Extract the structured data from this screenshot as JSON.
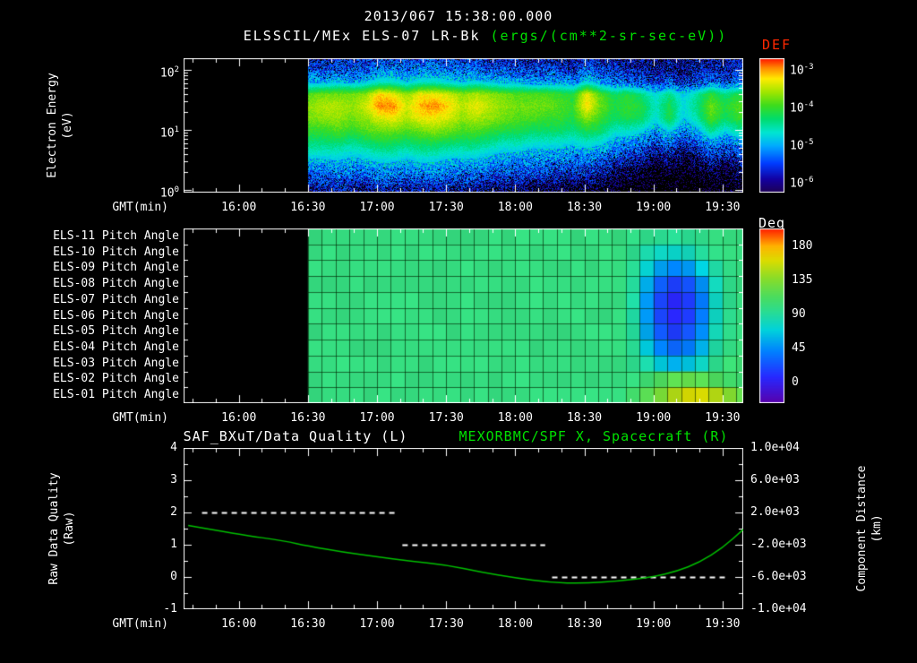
{
  "header": {
    "timestamp": "2013/067 15:38:00.000",
    "instrument_title": "ELSSCIL/MEx ELS-07 LR-Bk",
    "units_label": "(ergs/(cm**2-sr-sec-eV))"
  },
  "colors": {
    "background": "#000000",
    "white": "#ffffff",
    "green": "#00e000",
    "def_red": "#ff2800",
    "curve_green": "#00c000"
  },
  "axes": {
    "gmt_label": "GMT(min)",
    "xtick_labels": [
      "16:00",
      "16:30",
      "17:00",
      "17:30",
      "18:00",
      "18:30",
      "19:00",
      "19:30"
    ]
  },
  "spectrogram": {
    "colorbar_title": "DEF",
    "ylabel_line1": "Electron Energy",
    "ylabel_line2": "(eV)",
    "ytick_exponents": [
      2,
      1,
      0
    ],
    "colorbar_tick_exponents": [
      -3,
      -4,
      -5,
      -6
    ]
  },
  "pitch": {
    "colorbar_title": "Deg",
    "colorbar_ticks": [
      "180",
      "135",
      "90",
      "45",
      "0"
    ]
  },
  "bottom": {
    "title_left": "SAF_BXuT/Data Quality (L)",
    "title_right": "MEXORBMC/SPF X, Spacecraft (R)",
    "left_label_line1": "Raw Data Quality",
    "left_label_line2": "(Raw)",
    "right_label_line1": "Component Distance",
    "right_label_line2": "(km)",
    "left_ticks": [
      "4",
      "3",
      "2",
      "1",
      "0",
      "-1"
    ],
    "right_ticks": [
      "1.0e+04",
      "6.0e+03",
      "2.0e+03",
      "-2.0e+03",
      "-6.0e+03",
      "-1.0e+04"
    ]
  },
  "colormaps": {
    "def": [
      [
        0,
        "#1e0050"
      ],
      [
        0.1,
        "#1400a0"
      ],
      [
        0.22,
        "#003cff"
      ],
      [
        0.35,
        "#00aaff"
      ],
      [
        0.45,
        "#00e6d2"
      ],
      [
        0.55,
        "#00dc6e"
      ],
      [
        0.65,
        "#3cdc1e"
      ],
      [
        0.75,
        "#a0e600"
      ],
      [
        0.85,
        "#ffeb00"
      ],
      [
        0.93,
        "#ff8c00"
      ],
      [
        1,
        "#ff1400"
      ]
    ],
    "deg": [
      [
        0,
        "#5a00aa"
      ],
      [
        0.15,
        "#2828ff"
      ],
      [
        0.3,
        "#0082ff"
      ],
      [
        0.42,
        "#00d2dc"
      ],
      [
        0.52,
        "#28dc96"
      ],
      [
        0.6,
        "#46dc64"
      ],
      [
        0.72,
        "#8cdc28"
      ],
      [
        0.82,
        "#dcdc00"
      ],
      [
        0.9,
        "#ffb400"
      ],
      [
        1,
        "#ff1e00"
      ]
    ]
  },
  "chart_data": [
    {
      "type": "heatmap",
      "name": "electron_energy_spectrogram",
      "title": "ELSSCIL/MEx ELS-07 LR-Bk",
      "units": "ergs/(cm**2-sr-sec-eV)",
      "xlabel": "GMT(min)",
      "x_range": [
        "15:36",
        "19:39"
      ],
      "xtick_labels": [
        "16:00",
        "16:30",
        "17:00",
        "17:30",
        "18:00",
        "18:30",
        "19:00",
        "19:30"
      ],
      "ylabel": "Electron Energy (eV)",
      "yscale": "log",
      "ytick_ev": [
        100,
        10,
        1
      ],
      "value_log10_range": [
        -6,
        -3
      ],
      "data_start": "16:30",
      "energy_rows_log10": [
        2.2,
        2.0,
        1.8,
        1.6,
        1.4,
        1.2,
        1.0,
        0.7,
        0.35,
        0
      ],
      "columns_t": [
        "16:31",
        "16:37",
        "16:43",
        "16:49",
        "16:55",
        "17:01",
        "17:07",
        "17:13",
        "17:19",
        "17:25",
        "17:31",
        "17:37",
        "17:43",
        "17:49",
        "17:55",
        "18:01",
        "18:07",
        "18:13",
        "18:19",
        "18:25",
        "18:31",
        "18:37",
        "18:43",
        "18:49",
        "18:55",
        "19:01",
        "19:07",
        "19:13",
        "19:19",
        "19:25",
        "19:31",
        "19:37"
      ],
      "values": [
        [
          -5.6,
          -5.3,
          -4.9,
          -4.0,
          -3.8,
          -3.9,
          -4.1,
          -4.5,
          -5.1,
          -5.7
        ],
        [
          -5.6,
          -5.4,
          -4.9,
          -3.9,
          -3.7,
          -3.8,
          -4.1,
          -4.5,
          -5.1,
          -5.7
        ],
        [
          -5.5,
          -5.3,
          -4.8,
          -3.9,
          -3.7,
          -3.8,
          -4.0,
          -4.5,
          -5.0,
          -5.6
        ],
        [
          -5.6,
          -5.3,
          -4.9,
          -3.9,
          -3.8,
          -3.9,
          -4.1,
          -4.6,
          -5.1,
          -5.7
        ],
        [
          -5.5,
          -5.3,
          -4.8,
          -3.8,
          -3.6,
          -3.8,
          -4.0,
          -4.5,
          -5.1,
          -5.7
        ],
        [
          -5.4,
          -5.1,
          -4.6,
          -3.4,
          -3.2,
          -3.6,
          -3.9,
          -4.4,
          -5.0,
          -5.6
        ],
        [
          -5.4,
          -5.1,
          -4.6,
          -3.5,
          -3.2,
          -3.5,
          -3.9,
          -4.4,
          -5.0,
          -5.6
        ],
        [
          -5.5,
          -5.2,
          -4.8,
          -3.8,
          -3.6,
          -3.7,
          -4.0,
          -4.5,
          -5.1,
          -5.7
        ],
        [
          -5.4,
          -5.1,
          -4.6,
          -3.5,
          -3.3,
          -3.5,
          -3.9,
          -4.4,
          -5.0,
          -5.6
        ],
        [
          -5.4,
          -5.1,
          -4.6,
          -3.5,
          -3.2,
          -3.5,
          -3.8,
          -4.4,
          -5.0,
          -5.6
        ],
        [
          -5.4,
          -5.2,
          -4.7,
          -3.6,
          -3.4,
          -3.6,
          -3.9,
          -4.5,
          -5.1,
          -5.6
        ],
        [
          -5.5,
          -5.2,
          -4.8,
          -3.8,
          -3.7,
          -3.8,
          -4.0,
          -4.5,
          -5.1,
          -5.7
        ],
        [
          -5.5,
          -5.2,
          -4.7,
          -3.7,
          -3.5,
          -3.7,
          -4.0,
          -4.5,
          -5.1,
          -5.7
        ],
        [
          -5.5,
          -5.3,
          -4.8,
          -3.8,
          -3.7,
          -3.8,
          -4.1,
          -4.6,
          -5.2,
          -5.8
        ],
        [
          -5.6,
          -5.3,
          -4.9,
          -3.9,
          -3.8,
          -3.9,
          -4.2,
          -4.7,
          -5.2,
          -5.8
        ],
        [
          -5.6,
          -5.4,
          -4.9,
          -4.0,
          -3.9,
          -4.0,
          -4.2,
          -4.7,
          -5.3,
          -5.8
        ],
        [
          -5.6,
          -5.4,
          -5.0,
          -4.0,
          -3.9,
          -4.0,
          -4.3,
          -4.8,
          -5.3,
          -5.9
        ],
        [
          -5.6,
          -5.4,
          -5.0,
          -4.0,
          -3.9,
          -4.1,
          -4.3,
          -4.8,
          -5.3,
          -5.9
        ],
        [
          -5.6,
          -5.4,
          -5.0,
          -4.1,
          -4.0,
          -4.1,
          -4.3,
          -4.8,
          -5.4,
          -5.9
        ],
        [
          -5.7,
          -5.5,
          -5.1,
          -4.2,
          -4.1,
          -4.2,
          -4.4,
          -4.9,
          -5.4,
          -6.0
        ],
        [
          -5.5,
          -5.2,
          -4.7,
          -3.5,
          -3.4,
          -3.8,
          -4.2,
          -4.8,
          -5.4,
          -5.9
        ],
        [
          -5.6,
          -5.4,
          -5.0,
          -4.0,
          -3.9,
          -4.1,
          -4.3,
          -4.9,
          -5.5,
          -6.0
        ],
        [
          -5.7,
          -5.5,
          -5.2,
          -4.3,
          -4.2,
          -4.3,
          -4.6,
          -5.1,
          -5.7,
          -6.1
        ],
        [
          -5.7,
          -5.5,
          -5.2,
          -4.2,
          -4.1,
          -4.2,
          -4.6,
          -5.2,
          -5.8,
          -6.2
        ],
        [
          -5.7,
          -5.6,
          -5.3,
          -4.4,
          -4.2,
          -4.3,
          -4.7,
          -5.3,
          -5.9,
          -6.2
        ],
        [
          -5.8,
          -5.7,
          -5.5,
          -4.7,
          -4.6,
          -4.7,
          -5.0,
          -5.6,
          -6.1,
          -6.3
        ],
        [
          -5.7,
          -5.6,
          -5.3,
          -4.4,
          -4.2,
          -4.2,
          -4.7,
          -5.4,
          -6.0,
          -6.3
        ],
        [
          -5.8,
          -5.7,
          -5.5,
          -4.8,
          -4.7,
          -4.8,
          -5.1,
          -5.7,
          -6.1,
          -6.3
        ],
        [
          -5.7,
          -5.6,
          -5.4,
          -4.5,
          -4.4,
          -4.5,
          -4.9,
          -5.5,
          -6.0,
          -6.3
        ],
        [
          -5.7,
          -5.5,
          -5.2,
          -4.1,
          -3.9,
          -4.0,
          -4.4,
          -5.2,
          -5.8,
          -6.2
        ],
        [
          -5.7,
          -5.6,
          -5.3,
          -4.4,
          -4.2,
          -4.3,
          -4.7,
          -5.4,
          -5.9,
          -6.2
        ],
        [
          -5.6,
          -5.5,
          -5.2,
          -4.2,
          -4.0,
          -4.1,
          -4.5,
          -5.2,
          -5.8,
          -6.1
        ]
      ]
    },
    {
      "type": "heatmap",
      "name": "pitch_angle_panels",
      "xlabel": "GMT(min)",
      "x_range": [
        "15:36",
        "19:39"
      ],
      "xtick_labels": [
        "16:00",
        "16:30",
        "17:00",
        "17:30",
        "18:00",
        "18:30",
        "19:00",
        "19:30"
      ],
      "row_labels": [
        "ELS-11 Pitch Angle",
        "ELS-10 Pitch Angle",
        "ELS-09 Pitch Angle",
        "ELS-08 Pitch Angle",
        "ELS-07 Pitch Angle",
        "ELS-06 Pitch Angle",
        "ELS-05 Pitch Angle",
        "ELS-04 Pitch Angle",
        "ELS-03 Pitch Angle",
        "ELS-02 Pitch Angle",
        "ELS-01 Pitch Angle"
      ],
      "value_units": "deg",
      "value_range": [
        0,
        180
      ],
      "colorbar_ticks": [
        180,
        135,
        90,
        45,
        0
      ],
      "data_start": "16:30",
      "col_minutes": 6,
      "grid": [
        [
          100,
          100,
          100,
          100,
          100,
          100,
          100,
          100,
          100,
          100,
          100,
          100,
          100,
          100,
          100,
          100,
          100,
          100,
          100,
          100,
          100,
          100,
          100,
          98,
          97,
          95,
          94,
          95,
          97,
          100,
          100,
          100
        ],
        [
          100,
          100,
          100,
          100,
          100,
          100,
          100,
          100,
          100,
          100,
          100,
          100,
          100,
          100,
          100,
          100,
          100,
          100,
          100,
          100,
          100,
          100,
          100,
          96,
          88,
          82,
          80,
          84,
          92,
          98,
          100,
          100
        ],
        [
          100,
          100,
          100,
          100,
          100,
          100,
          100,
          100,
          100,
          100,
          100,
          100,
          100,
          100,
          100,
          100,
          100,
          100,
          100,
          100,
          100,
          100,
          100,
          94,
          78,
          62,
          55,
          60,
          75,
          90,
          98,
          100
        ],
        [
          100,
          100,
          100,
          100,
          100,
          100,
          100,
          100,
          100,
          100,
          100,
          100,
          100,
          100,
          100,
          100,
          100,
          100,
          100,
          100,
          100,
          100,
          100,
          92,
          66,
          44,
          34,
          40,
          58,
          84,
          97,
          100
        ],
        [
          100,
          100,
          100,
          100,
          100,
          100,
          100,
          100,
          100,
          100,
          100,
          100,
          100,
          100,
          100,
          100,
          100,
          100,
          100,
          100,
          100,
          100,
          100,
          90,
          60,
          36,
          26,
          33,
          52,
          82,
          96,
          100
        ],
        [
          100,
          100,
          100,
          100,
          100,
          100,
          100,
          100,
          100,
          100,
          100,
          100,
          100,
          100,
          100,
          100,
          100,
          100,
          100,
          100,
          100,
          100,
          100,
          90,
          60,
          36,
          26,
          33,
          52,
          82,
          96,
          100
        ],
        [
          100,
          100,
          100,
          100,
          100,
          100,
          100,
          100,
          100,
          100,
          100,
          100,
          100,
          100,
          100,
          100,
          100,
          100,
          100,
          100,
          100,
          100,
          100,
          92,
          64,
          42,
          33,
          40,
          57,
          85,
          97,
          100
        ],
        [
          100,
          100,
          100,
          100,
          100,
          100,
          100,
          100,
          100,
          100,
          100,
          100,
          100,
          100,
          100,
          100,
          100,
          100,
          100,
          100,
          100,
          100,
          100,
          94,
          74,
          54,
          46,
          52,
          67,
          90,
          99,
          102
        ],
        [
          100,
          100,
          100,
          100,
          100,
          100,
          100,
          100,
          100,
          100,
          100,
          100,
          100,
          100,
          100,
          100,
          100,
          100,
          100,
          100,
          100,
          100,
          100,
          96,
          88,
          74,
          66,
          72,
          82,
          96,
          103,
          104
        ],
        [
          100,
          100,
          100,
          100,
          100,
          100,
          100,
          100,
          100,
          100,
          100,
          100,
          100,
          100,
          100,
          100,
          100,
          100,
          100,
          100,
          100,
          100,
          100,
          100,
          104,
          110,
          115,
          117,
          114,
          110,
          106,
          104
        ],
        [
          100,
          100,
          100,
          100,
          100,
          100,
          100,
          100,
          100,
          100,
          100,
          100,
          100,
          100,
          100,
          100,
          100,
          100,
          100,
          100,
          100,
          100,
          100,
          106,
          114,
          124,
          138,
          147,
          147,
          139,
          127,
          117
        ]
      ]
    },
    {
      "type": "line",
      "name": "quality_and_distance",
      "xlabel": "GMT(min)",
      "x_range": [
        "15:36",
        "19:39"
      ],
      "xtick_labels": [
        "16:00",
        "16:30",
        "17:00",
        "17:30",
        "18:00",
        "18:30",
        "19:00",
        "19:30"
      ],
      "left_axis": {
        "label": "Raw Data Quality (Raw)",
        "range": [
          -1,
          4
        ],
        "ticks": [
          4,
          3,
          2,
          1,
          0,
          -1
        ]
      },
      "right_axis": {
        "label": "Component Distance (km)",
        "range": [
          -10000,
          10000
        ],
        "ticks": [
          10000,
          6000,
          2000,
          -2000,
          -6000,
          -10000
        ]
      },
      "series": [
        {
          "name": "SAF_BXuT/Data Quality (L)",
          "axis": "left",
          "color": "#ffffff",
          "style": "dashed",
          "segments": [
            {
              "level": 2,
              "from": "15:44",
              "to": "17:09"
            },
            {
              "level": 1,
              "from": "17:11",
              "to": "18:13"
            },
            {
              "level": 0,
              "from": "18:16",
              "to": "19:31"
            }
          ]
        },
        {
          "name": "MEXORBMC/SPF X, Spacecraft (R)",
          "axis": "right",
          "color": "#00c000",
          "style": "solid",
          "points": [
            [
              "15:38",
              400
            ],
            [
              "16:00",
              -700
            ],
            [
              "16:20",
              -1550
            ],
            [
              "16:30",
              -2150
            ],
            [
              "16:45",
              -2900
            ],
            [
              "17:00",
              -3500
            ],
            [
              "17:15",
              -4050
            ],
            [
              "17:30",
              -4500
            ],
            [
              "17:45",
              -5400
            ],
            [
              "18:00",
              -6100
            ],
            [
              "18:15",
              -6700
            ],
            [
              "18:30",
              -6800
            ],
            [
              "18:45",
              -6500
            ],
            [
              "19:00",
              -6000
            ],
            [
              "19:10",
              -5300
            ],
            [
              "19:20",
              -4200
            ],
            [
              "19:30",
              -2400
            ],
            [
              "19:39",
              -100
            ]
          ]
        }
      ]
    }
  ]
}
